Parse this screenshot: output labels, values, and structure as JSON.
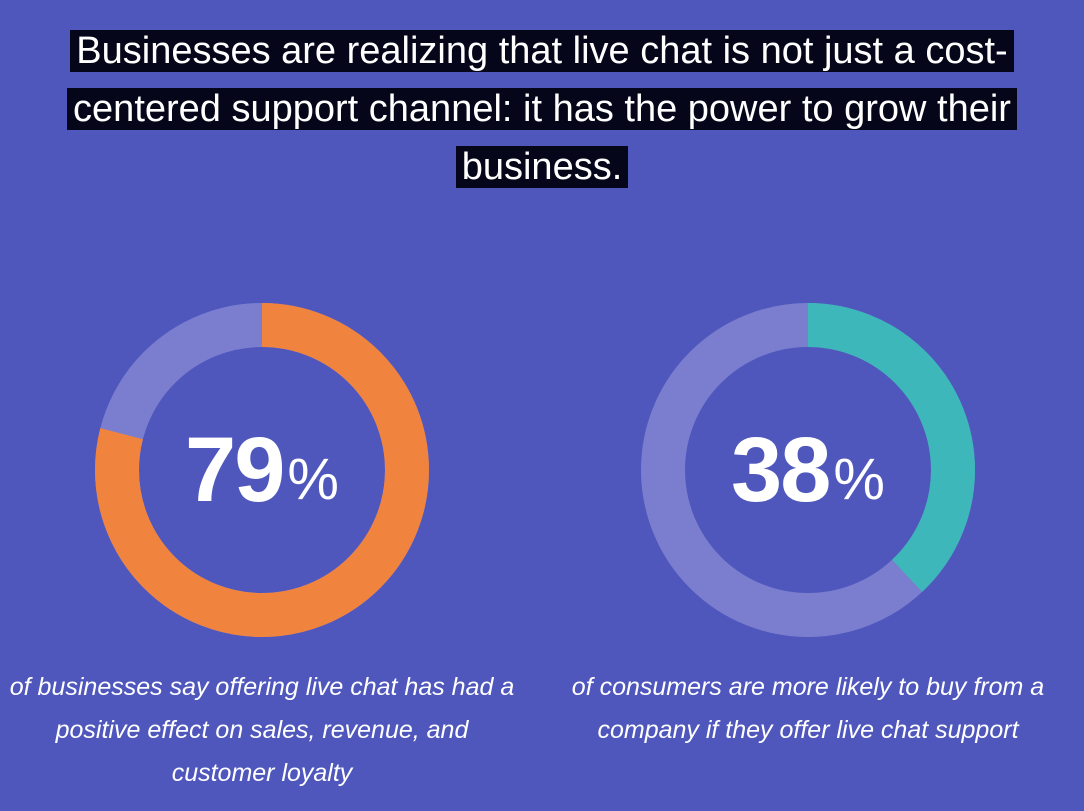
{
  "headline": "Businesses are realizing that live chat is not just a cost-centered support channel: it has the power to grow their business.",
  "colors": {
    "background": "#4f57bd",
    "ring_track": "#7b7ecf",
    "orange": "#f0843f",
    "teal": "#3db7b9",
    "headline_bg": "#06061a"
  },
  "chart_data": [
    {
      "type": "pie",
      "value": 79,
      "max": 100,
      "label": "79",
      "unit": "%",
      "caption": "of businesses say offering live chat has had a positive effect on sales, revenue, and customer loyalty",
      "color": "#f0843f"
    },
    {
      "type": "pie",
      "value": 38,
      "max": 100,
      "label": "38",
      "unit": "%",
      "caption": "of consumers are more likely to buy from a company if they offer live chat support",
      "color": "#3db7b9"
    }
  ]
}
